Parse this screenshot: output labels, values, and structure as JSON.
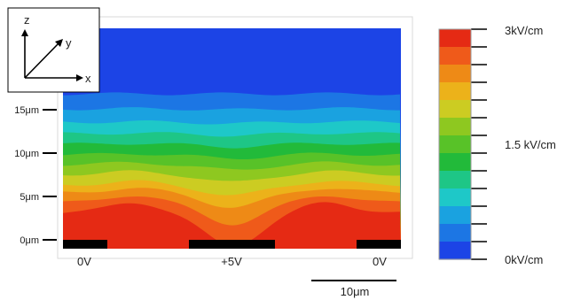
{
  "axes_inset": {
    "z_label": "z",
    "y_label": "y",
    "x_label": "x"
  },
  "y_axis": {
    "ticks": [
      {
        "label": "0μm",
        "value": 0
      },
      {
        "label": "5μm",
        "value": 5
      },
      {
        "label": "10μm",
        "value": 10
      },
      {
        "label": "15μm",
        "value": 15
      }
    ]
  },
  "electrodes": [
    {
      "name": "left",
      "label": "0V",
      "voltage": 0
    },
    {
      "name": "center",
      "label": "+5V",
      "voltage": 5
    },
    {
      "name": "right",
      "label": "0V",
      "voltage": 0
    }
  ],
  "scale_bar": {
    "label": "10μm",
    "length_um": 10
  },
  "colorbar": {
    "max_label": "3kV/cm",
    "mid_label": "1.5 kV/cm",
    "min_label": "0kV/cm",
    "colors_top_to_bottom": [
      "#e52a14",
      "#ef5a1a",
      "#ee8a16",
      "#ecb21a",
      "#cccc22",
      "#8ec820",
      "#58c228",
      "#22ba3a",
      "#1ec686",
      "#1ec8c8",
      "#1aa2e0",
      "#1c76e4",
      "#1c44e6"
    ]
  },
  "colors": {
    "field_max": "#e52a14",
    "field_min": "#1c44e6",
    "electrode": "#000000"
  }
}
